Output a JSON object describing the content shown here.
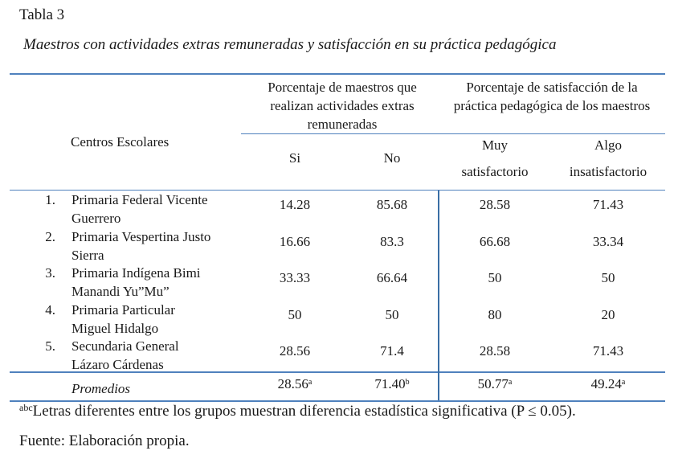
{
  "table_label": "Tabla 3",
  "caption": "Maestros con actividades extras remuneradas y satisfacción en su práctica pedagógica",
  "headers": {
    "centros": "Centros Escolares",
    "group1": "Porcentaje de maestros que realizan actividades extras remuneradas",
    "group2": "Porcentaje de satisfacción de la práctica pedagógica de los maestros",
    "si": "Si",
    "no": "No",
    "muy_top": "Muy",
    "muy_bottom": "satisfactorio",
    "algo_top": "Algo",
    "algo_bottom": "insatisfactorio"
  },
  "rows": [
    {
      "num": "1.",
      "line1": "Primaria Federal Vicente",
      "line2": "Guerrero",
      "si": "14.28",
      "no": "85.68",
      "muy": "28.58",
      "algo": "71.43"
    },
    {
      "num": "2.",
      "line1": "Primaria Vespertina Justo",
      "line2": "Sierra",
      "si": "16.66",
      "no": "83.3",
      "muy": "66.68",
      "algo": "33.34"
    },
    {
      "num": "3.",
      "line1": "Primaria Indígena Bimi",
      "line2": "Manandi Yu”Mu”",
      "si": "33.33",
      "no": "66.64",
      "muy": "50",
      "algo": "50"
    },
    {
      "num": "4.",
      "line1": "Primaria Particular",
      "line2": "Miguel Hidalgo",
      "si": "50",
      "no": "50",
      "muy": "80",
      "algo": "20"
    },
    {
      "num": "5.",
      "line1": "Secundaria General",
      "line2": "Lázaro Cárdenas",
      "si": "28.56",
      "no": "71.4",
      "muy": "28.58",
      "algo": "71.43"
    }
  ],
  "promedios": {
    "label": "Promedios",
    "si": "28.56",
    "si_sup": "a",
    "no": "71.40",
    "no_sup": "b",
    "muy": "50.77",
    "muy_sup": "a",
    "algo": "49.24",
    "algo_sup": "a"
  },
  "footnote": {
    "sup": "abc",
    "text": "Letras diferentes entre los grupos muestran diferencia estadística significativa (P ≤ 0.05)."
  },
  "source": "Fuente: Elaboración propia."
}
